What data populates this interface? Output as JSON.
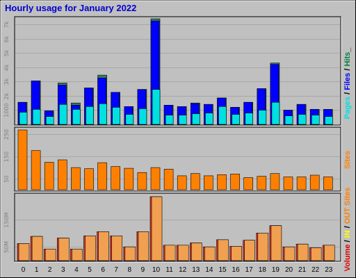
{
  "chart_data": {
    "type": "bar",
    "title": "Hourly usage for January 2022",
    "categories": [
      "0",
      "1",
      "2",
      "3",
      "4",
      "5",
      "6",
      "7",
      "8",
      "9",
      "10",
      "11",
      "12",
      "13",
      "14",
      "15",
      "16",
      "17",
      "18",
      "19",
      "20",
      "21",
      "22",
      "23"
    ],
    "panels": [
      {
        "id": "requests",
        "ymax": 7400,
        "ticks": [
          "1000",
          "2k",
          "3k",
          "4k",
          "5k",
          "6k",
          "7k"
        ],
        "tick_values": [
          1000,
          2000,
          3000,
          4000,
          5000,
          6000,
          7000
        ],
        "legend": [
          {
            "text": "Pages",
            "color": "#00e0e0"
          },
          {
            "text": " / ",
            "color": "#000000"
          },
          {
            "text": "Files",
            "color": "#0000ff"
          },
          {
            "text": " / ",
            "color": "#000000"
          },
          {
            "text": "Hits",
            "color": "#008040"
          },
          {
            "text": "_",
            "color": "#000000"
          }
        ],
        "series": [
          {
            "name": "Hits",
            "color": "#308060",
            "values": [
              1550,
              3050,
              950,
              2900,
              1500,
              2550,
              3450,
              2250,
              1250,
              2450,
              7400,
              1350,
              1250,
              1500,
              1400,
              1850,
              1200,
              1550,
              2500,
              4300,
              1000,
              1400,
              1050,
              1050
            ]
          },
          {
            "name": "Files",
            "color": "#0000ff",
            "values": [
              1550,
              3050,
              950,
              2750,
              1350,
              2550,
              3250,
              2250,
              1250,
              2450,
              7250,
              1350,
              1250,
              1450,
              1400,
              1850,
              1200,
              1550,
              2500,
              4200,
              1000,
              1400,
              1050,
              1050
            ]
          },
          {
            "name": "Pages",
            "color": "#00e0e0",
            "values": [
              850,
              1050,
              550,
              1400,
              1050,
              1250,
              1450,
              1200,
              700,
              1100,
              2450,
              650,
              650,
              750,
              800,
              1250,
              700,
              800,
              1000,
              1550,
              600,
              700,
              650,
              550
            ]
          }
        ]
      },
      {
        "id": "sites",
        "ymax": 270,
        "ticks": [
          "50",
          "150",
          "250"
        ],
        "tick_values": [
          50,
          150,
          250
        ],
        "legend": [
          {
            "text": "Sites",
            "color": "#ff8000"
          }
        ],
        "series": [
          {
            "name": "Sites",
            "color": "#ff8000",
            "values": [
              270,
              177,
              124,
              135,
              100,
              95,
              122,
              105,
              97,
              78,
              100,
              93,
              63,
              73,
              63,
              68,
              71,
              55,
              61,
              73,
              58,
              58,
              66,
              58
            ]
          }
        ]
      },
      {
        "id": "volume",
        "ymax": 232,
        "ticks": [
          "50M",
          "150M"
        ],
        "tick_values": [
          50,
          150
        ],
        "legend": [
          {
            "text": "Volume",
            "color": "#dd0000"
          },
          {
            "text": " / ",
            "color": "#000000"
          },
          {
            "text": "IN",
            "color": "#ffff00"
          },
          {
            "text": " / ",
            "color": "#000000"
          },
          {
            "text": "OUT",
            "color": "#ff8000"
          },
          {
            "text": " ",
            "color": "#000000"
          },
          {
            "text": "Sites",
            "color": "#ff8000"
          }
        ],
        "series": [
          {
            "name": "Volume",
            "color": "#ee3322",
            "values": [
              62,
              88,
              42,
              82,
              42,
              90,
              105,
              90,
              50,
              105,
              232,
              56,
              56,
              64,
              50,
              76,
              52,
              74,
              100,
              127,
              50,
              60,
              47,
              56
            ]
          },
          {
            "name": "OUT",
            "color": "#f0a050",
            "values": [
              62,
              88,
              42,
              82,
              42,
              90,
              105,
              90,
              50,
              105,
              232,
              56,
              56,
              64,
              50,
              76,
              52,
              74,
              100,
              127,
              50,
              60,
              47,
              56
            ]
          }
        ]
      }
    ]
  }
}
